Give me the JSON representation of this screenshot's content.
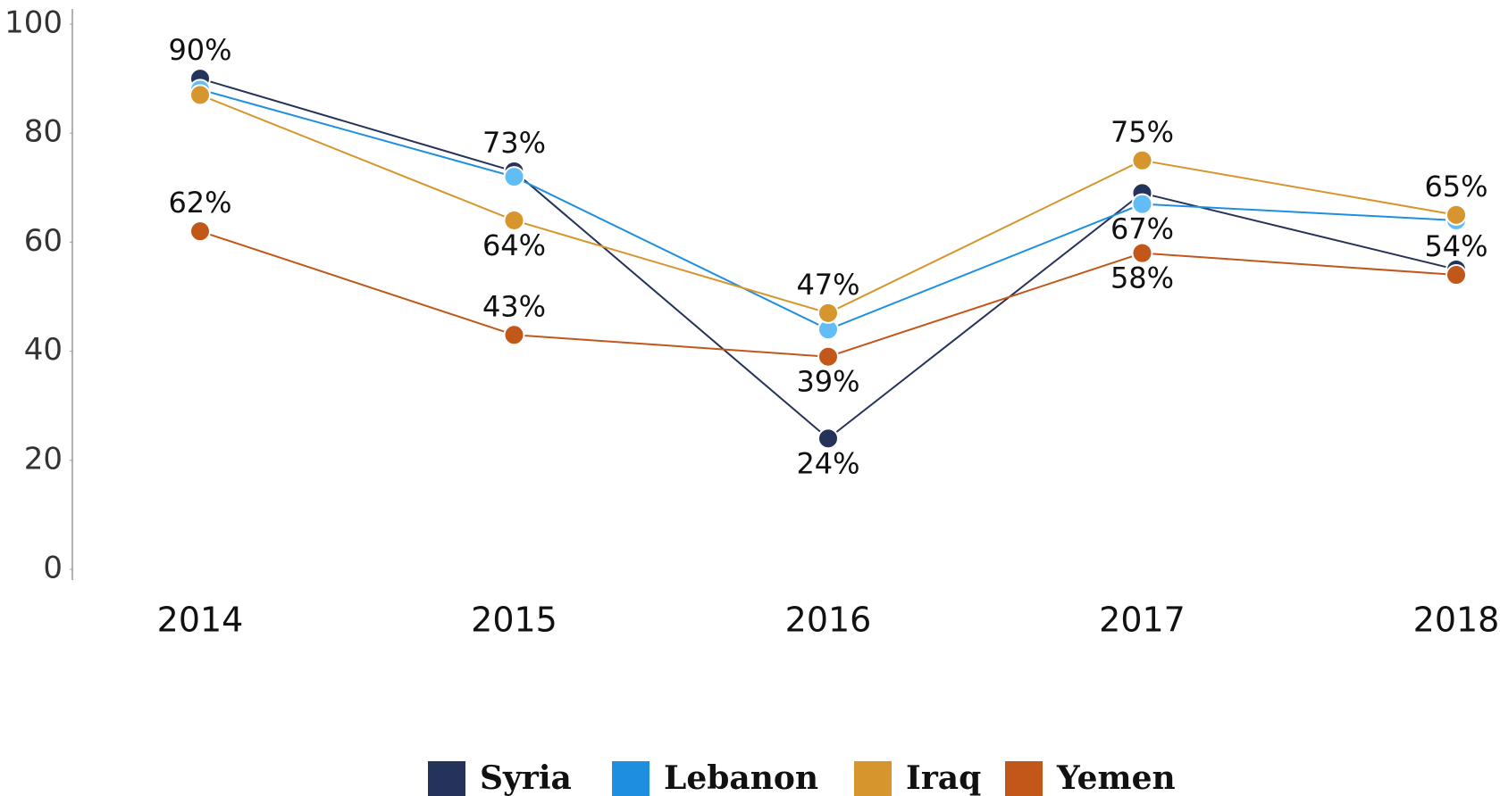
{
  "chart_data": {
    "type": "line",
    "categories": [
      "2014",
      "2015",
      "2016",
      "2017",
      "2018"
    ],
    "series": [
      {
        "name": "Syria",
        "color": "#253259",
        "values": [
          90,
          73,
          24,
          69,
          55
        ],
        "value_labels": [
          "90%",
          "73%",
          "24%",
          null,
          null
        ]
      },
      {
        "name": "Lebanon",
        "color": "#1e8fe0",
        "values": [
          88,
          72,
          44,
          67,
          64
        ],
        "value_labels": [
          null,
          null,
          null,
          "67%",
          null
        ]
      },
      {
        "name": "Iraq",
        "color": "#d6962d",
        "values": [
          87,
          64,
          47,
          75,
          65
        ],
        "value_labels": [
          null,
          "64%",
          "47%",
          "75%",
          "65%"
        ]
      },
      {
        "name": "Yemen",
        "color": "#c2571a",
        "values": [
          62,
          43,
          39,
          58,
          54
        ],
        "value_labels": [
          "62%",
          "43%",
          "39%",
          "58%",
          "54%"
        ]
      }
    ],
    "ylim": [
      0,
      100
    ],
    "yticks": [
      0,
      20,
      40,
      60,
      80,
      100
    ],
    "grid": false,
    "legend": "bottom"
  }
}
